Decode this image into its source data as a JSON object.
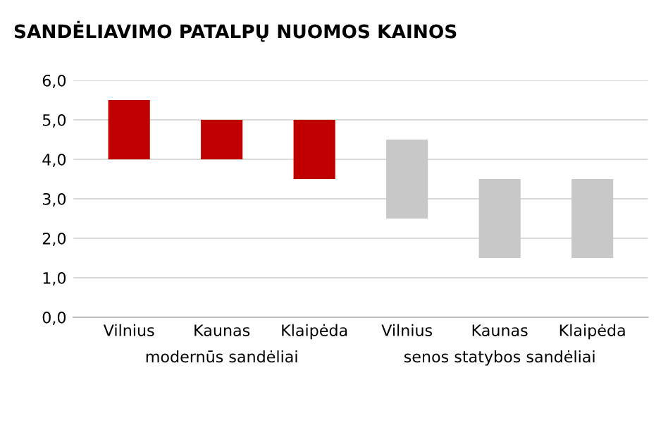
{
  "chart_data": {
    "type": "bar",
    "title": "SANDĖLIAVIMO PATALPŲ NUOMOS KAINOS",
    "categories": [
      "Vilnius",
      "Kaunas",
      "Klaipėda",
      "Vilnius",
      "Kaunas",
      "Klaipėda"
    ],
    "base": [
      4.0,
      4.0,
      3.5,
      2.5,
      1.5,
      1.5
    ],
    "values": [
      1.5,
      1.0,
      1.5,
      2.0,
      2.0,
      2.0
    ],
    "colors": [
      "#c00000",
      "#c00000",
      "#c00000",
      "#c8c8c8",
      "#c8c8c8",
      "#c8c8c8"
    ],
    "annotations": [
      "modernūs sandėliai",
      "senos statybos sandėliai"
    ],
    "ylim": [
      0,
      6
    ],
    "yticks": [
      {
        "value": 0,
        "label": "0,0"
      },
      {
        "value": 1,
        "label": "1,0"
      },
      {
        "value": 2,
        "label": "2,0"
      },
      {
        "value": 3,
        "label": "3,0"
      },
      {
        "value": 4,
        "label": "4,0"
      },
      {
        "value": 5,
        "label": "5,0"
      },
      {
        "value": 6,
        "label": "6,0"
      }
    ],
    "grid": "y"
  }
}
